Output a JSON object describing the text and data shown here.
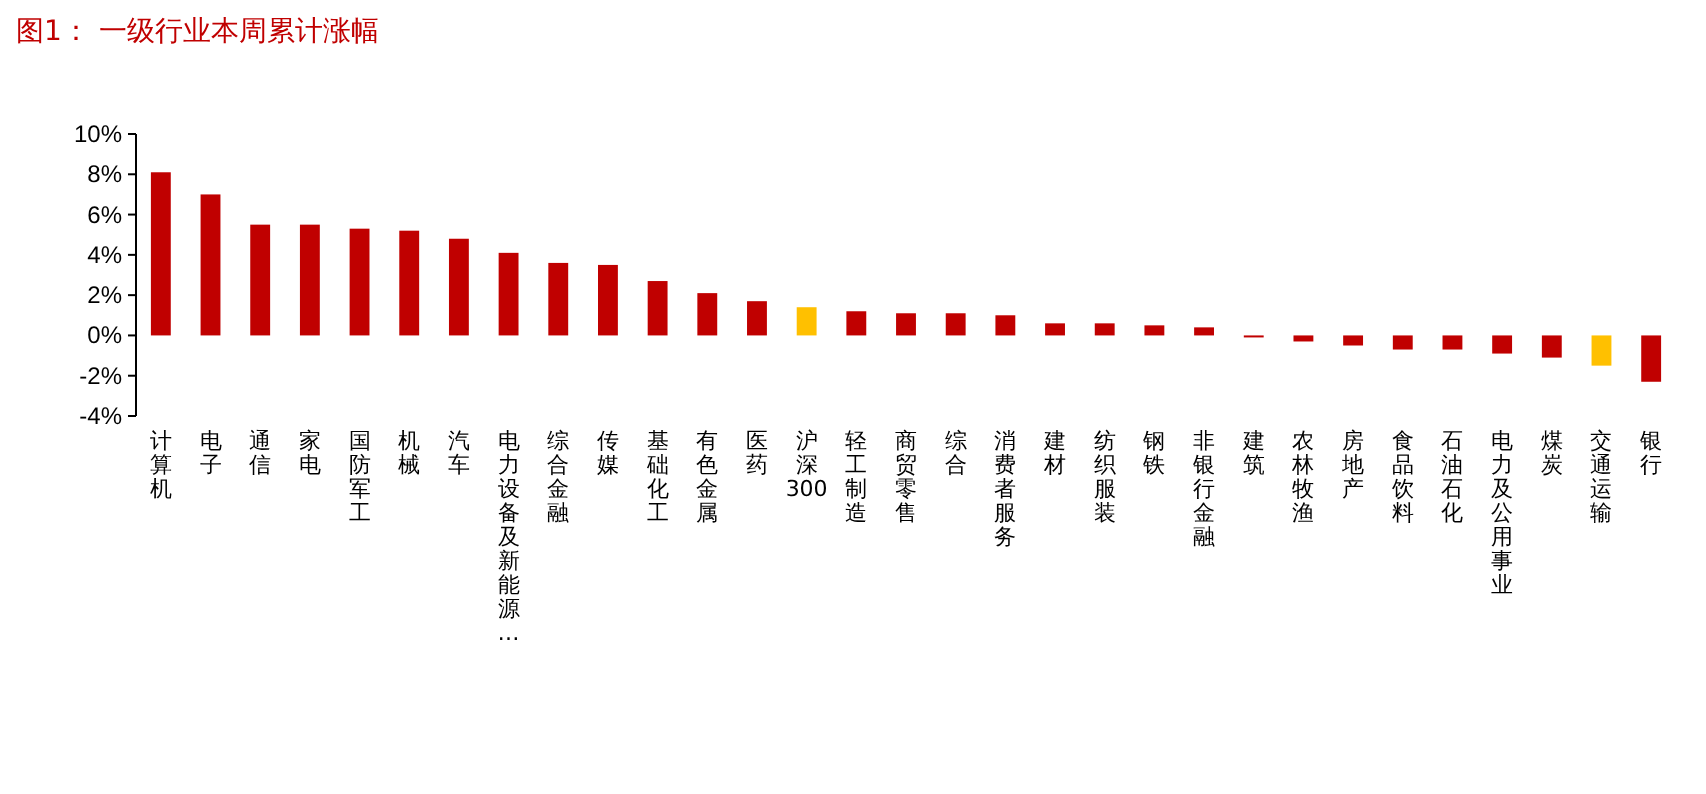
{
  "chart_data": {
    "type": "bar",
    "title": "图1：  一级行业本周累计涨幅",
    "categories": [
      "计算机",
      "电子",
      "通信",
      "家电",
      "国防军工",
      "机械",
      "汽车",
      "电力设备及新能源…",
      "综合金融",
      "传媒",
      "基础化工",
      "有色金属",
      "医药",
      "沪深300",
      "轻工制造",
      "商贸零售",
      "综合",
      "消费者服务",
      "建材",
      "纺织服装",
      "钢铁",
      "非银行金融",
      "建筑",
      "农林牧渔",
      "房地产",
      "食品饮料",
      "石油石化",
      "电力及公用事业",
      "煤炭",
      "交通运输",
      "银行"
    ],
    "values": [
      8.1,
      7.0,
      5.5,
      5.5,
      5.3,
      5.2,
      4.8,
      4.1,
      3.6,
      3.5,
      2.7,
      2.1,
      1.7,
      1.4,
      1.2,
      1.1,
      1.1,
      1.0,
      0.6,
      0.6,
      0.5,
      0.4,
      -0.1,
      -0.3,
      -0.5,
      -0.7,
      -0.7,
      -0.9,
      -1.1,
      -1.5,
      -2.3
    ],
    "colors": [
      "#c00000",
      "#c00000",
      "#c00000",
      "#c00000",
      "#c00000",
      "#c00000",
      "#c00000",
      "#c00000",
      "#c00000",
      "#c00000",
      "#c00000",
      "#c00000",
      "#c00000",
      "#ffc000",
      "#c00000",
      "#c00000",
      "#c00000",
      "#c00000",
      "#c00000",
      "#c00000",
      "#c00000",
      "#c00000",
      "#c00000",
      "#c00000",
      "#c00000",
      "#c00000",
      "#c00000",
      "#c00000",
      "#c00000",
      "#ffc000",
      "#c00000"
    ],
    "ylim": [
      -4,
      10
    ],
    "yticks": [
      {
        "value": -4,
        "label": "-4%"
      },
      {
        "value": -2,
        "label": "-2%"
      },
      {
        "value": 0,
        "label": "0%"
      },
      {
        "value": 2,
        "label": "2%"
      },
      {
        "value": 4,
        "label": "4%"
      },
      {
        "value": 6,
        "label": "6%"
      },
      {
        "value": 8,
        "label": "8%"
      },
      {
        "value": 10,
        "label": "10%"
      }
    ],
    "grid": false
  }
}
